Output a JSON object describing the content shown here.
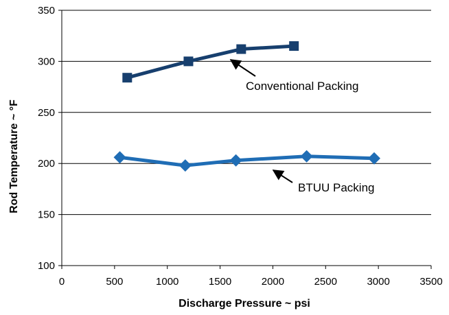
{
  "chart_data": {
    "type": "line",
    "xlabel": "Discharge Pressure ~ psi",
    "ylabel": "Rod Temperature ~ °F",
    "xlim": [
      0,
      3500
    ],
    "ylim": [
      100,
      350
    ],
    "xticks": [
      0,
      500,
      1000,
      1500,
      2000,
      2500,
      3000,
      3500
    ],
    "yticks": [
      100,
      150,
      200,
      250,
      300,
      350
    ],
    "grid": "horizontal",
    "series": [
      {
        "name": "Conventional Packing",
        "marker": "square",
        "color": "#173f6e",
        "x": [
          620,
          1200,
          1700,
          2200
        ],
        "y": [
          284,
          300,
          312,
          315
        ]
      },
      {
        "name": "BTUU Packing",
        "marker": "diamond",
        "color": "#1f6db5",
        "x": [
          550,
          1170,
          1650,
          2320,
          2960
        ],
        "y": [
          206,
          198,
          203,
          207,
          205
        ]
      }
    ]
  }
}
